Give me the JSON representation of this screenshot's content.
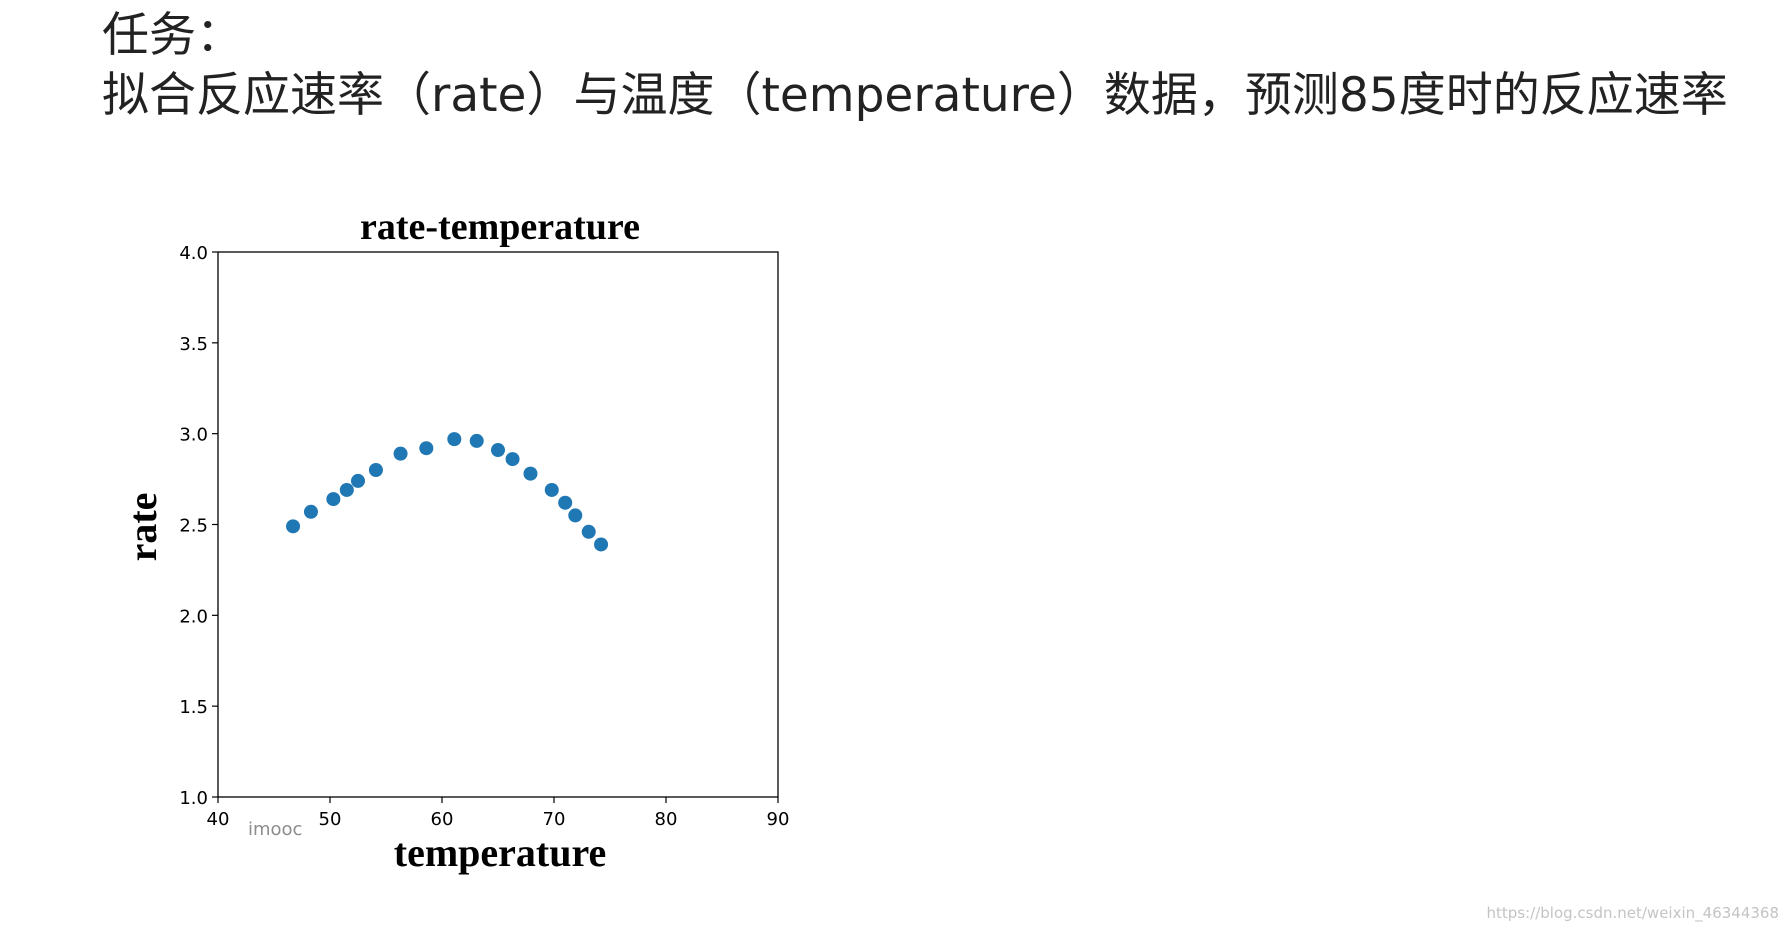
{
  "task": {
    "label": "任务：",
    "description": "拟合反应速率（rate）与温度（temperature）数据，预测85度时的反应速率"
  },
  "chart_data": {
    "type": "scatter",
    "title": "rate-temperature",
    "xlabel": "temperature",
    "ylabel": "rate",
    "xlim": [
      40,
      90
    ],
    "ylim": [
      1.0,
      4.0
    ],
    "xticks": [
      "40",
      "50",
      "60",
      "70",
      "80",
      "90"
    ],
    "yticks": [
      "1.0",
      "1.5",
      "2.0",
      "2.5",
      "3.0",
      "3.5",
      "4.0"
    ],
    "grid": false,
    "point_color": "#1f77b4",
    "x": [
      46.7,
      48.3,
      50.3,
      51.5,
      52.5,
      54.1,
      56.3,
      58.6,
      61.1,
      63.1,
      65.0,
      66.3,
      67.9,
      69.8,
      71.0,
      71.9,
      73.1,
      74.2
    ],
    "y": [
      2.49,
      2.57,
      2.64,
      2.69,
      2.74,
      2.8,
      2.89,
      2.92,
      2.97,
      2.96,
      2.91,
      2.86,
      2.78,
      2.69,
      2.62,
      2.55,
      2.46,
      2.39
    ]
  },
  "watermark": {
    "left": "imooc",
    "right": "https://blog.csdn.net/weixin_46344368"
  }
}
